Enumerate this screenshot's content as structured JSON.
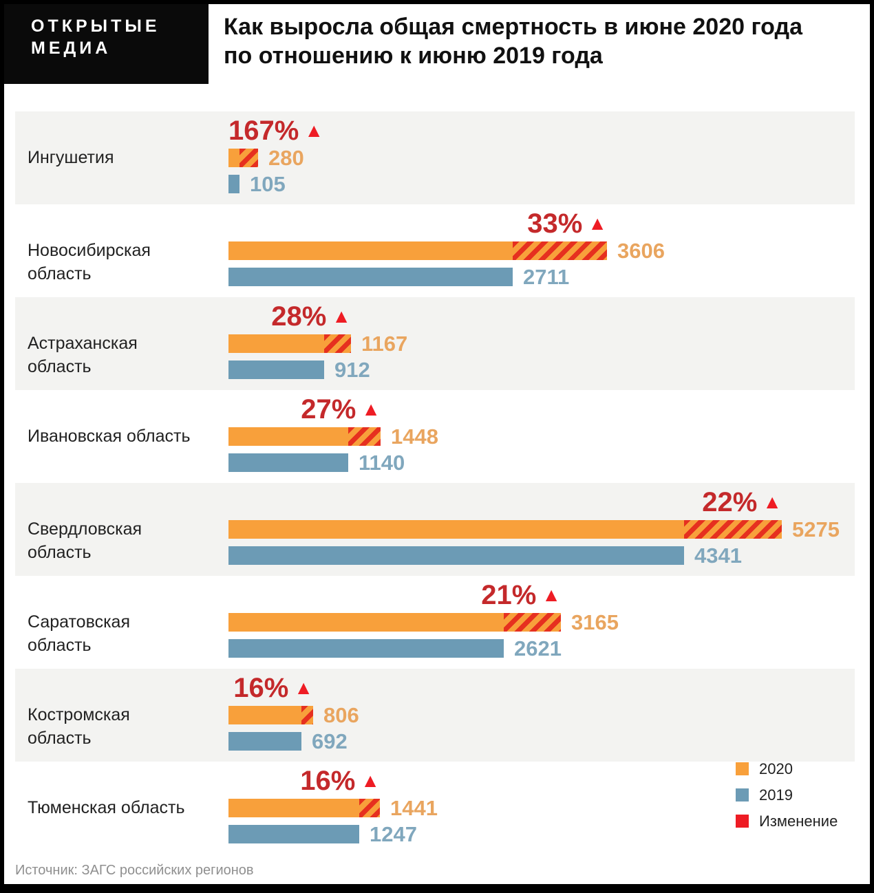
{
  "brand": {
    "line1": "ОТКРЫТЫЕ",
    "line2": "МЕДИА"
  },
  "title": {
    "line1": "Как выросла общая смертность в июне 2020 года",
    "line2": "по отношению к июню 2019 года"
  },
  "legend": [
    {
      "label": "2020",
      "color": "#F8A03B"
    },
    {
      "label": "2019",
      "color": "#6C9BB5"
    },
    {
      "label": "Изменение",
      "color": "#EE1C24"
    }
  ],
  "source": "Источник: ЗАГС российских регионов",
  "colors": {
    "bar_2020": "#F8A03B",
    "bar_2019": "#6C9BB5",
    "hatch_red": "#E6301F",
    "pct_text": "#C4292B",
    "triangle": "#EE1C24",
    "value_2020_text": "#E9A55F",
    "value_2019_text": "#80A7BD",
    "band_gray": "#F3F3F1"
  },
  "chart_data": {
    "type": "bar",
    "orientation": "horizontal",
    "title": "Как выросла общая смертность в июне 2020 года по отношению к июню 2019 года",
    "series": [
      {
        "name": "2020",
        "color": "#F8A03B"
      },
      {
        "name": "2019",
        "color": "#6C9BB5"
      }
    ],
    "change_series_label": "Изменение",
    "triangle_glyph": "▲",
    "regions": [
      {
        "name": "Ингушетия",
        "change_pct": "167%",
        "v2020": 280,
        "v2019": 105
      },
      {
        "name": "Новосибирская область",
        "change_pct": "33%",
        "v2020": 3606,
        "v2019": 2711
      },
      {
        "name": "Астраханская область",
        "change_pct": "28%",
        "v2020": 1167,
        "v2019": 912
      },
      {
        "name": "Ивановская область",
        "change_pct": "27%",
        "v2020": 1448,
        "v2019": 1140
      },
      {
        "name": "Свердловская область",
        "change_pct": "22%",
        "v2020": 5275,
        "v2019": 4341
      },
      {
        "name": "Саратовская область",
        "change_pct": "21%",
        "v2020": 3165,
        "v2019": 2621
      },
      {
        "name": "Костромская область",
        "change_pct": "16%",
        "v2020": 806,
        "v2019": 692
      },
      {
        "name": "Тюменская область",
        "change_pct": "16%",
        "v2020": 1441,
        "v2019": 1247
      }
    ]
  }
}
